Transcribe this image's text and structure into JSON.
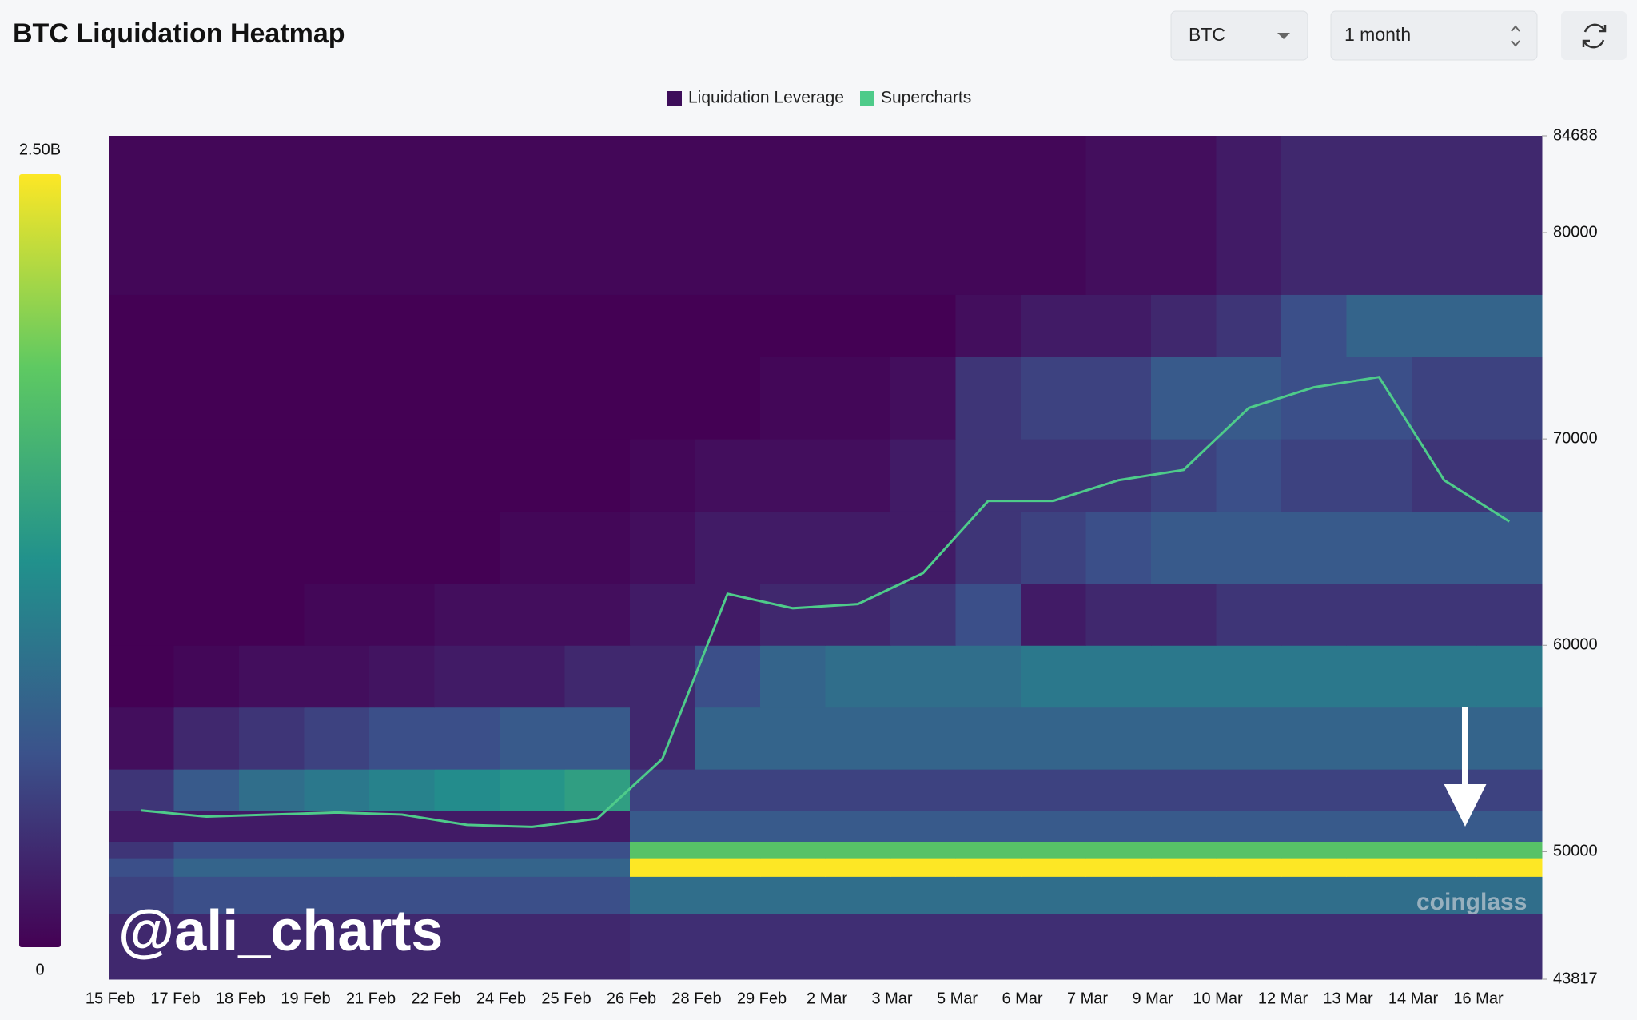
{
  "header": {
    "title": "BTC Liquidation Heatmap",
    "symbol": "BTC",
    "range": "1 month"
  },
  "chart_data": {
    "type": "heatmap",
    "categories": [
      "15 Feb",
      "17 Feb",
      "18 Feb",
      "19 Feb",
      "21 Feb",
      "22 Feb",
      "24 Feb",
      "25 Feb",
      "26 Feb",
      "28 Feb",
      "29 Feb",
      "2 Mar",
      "3 Mar",
      "5 Mar",
      "6 Mar",
      "7 Mar",
      "9 Mar",
      "10 Mar",
      "12 Mar",
      "13 Mar",
      "14 Mar",
      "16 Mar"
    ],
    "ylim": [
      43817,
      84688
    ],
    "yticks": [
      43817,
      50000,
      60000,
      70000,
      80000,
      84688
    ],
    "heatmap": {
      "name": "Liquidation Leverage",
      "color": "#3d0d5a",
      "clim": [
        0,
        2.5
      ],
      "cticks": [
        0,
        {
          "value": 2.5,
          "label": "2.50B"
        }
      ],
      "ybins": [
        43817,
        47000,
        48800,
        49700,
        50500,
        52000,
        54000,
        57000,
        60000,
        63000,
        66500,
        70000,
        74000,
        77000,
        84688
      ],
      "z": [
        [
          0.3,
          0.3,
          0.3,
          0.3,
          0.3,
          0.3,
          0.3,
          0.3,
          0.35,
          0.35,
          0.35,
          0.35,
          0.35,
          0.35,
          0.35,
          0.35,
          0.35,
          0.35,
          0.35,
          0.35,
          0.35,
          0.35
        ],
        [
          0.5,
          0.6,
          0.6,
          0.6,
          0.6,
          0.6,
          0.6,
          0.6,
          0.9,
          0.9,
          0.9,
          0.9,
          0.9,
          0.9,
          0.9,
          0.9,
          0.9,
          0.9,
          0.9,
          0.9,
          0.9,
          0.9
        ],
        [
          0.6,
          0.8,
          0.8,
          0.8,
          0.8,
          0.8,
          0.8,
          0.8,
          2.5,
          2.5,
          2.5,
          2.5,
          2.5,
          2.5,
          2.5,
          2.5,
          2.5,
          2.5,
          2.5,
          2.5,
          2.5,
          2.5
        ],
        [
          0.4,
          0.6,
          0.6,
          0.6,
          0.6,
          0.6,
          0.6,
          0.6,
          1.8,
          1.8,
          1.8,
          1.8,
          1.8,
          1.8,
          1.8,
          1.8,
          1.8,
          1.8,
          1.8,
          1.8,
          1.8,
          1.8
        ],
        [
          0.2,
          0.2,
          0.2,
          0.2,
          0.2,
          0.2,
          0.2,
          0.2,
          0.7,
          0.7,
          0.7,
          0.7,
          0.7,
          0.7,
          0.7,
          0.7,
          0.7,
          0.7,
          0.7,
          0.7,
          0.7,
          0.7
        ],
        [
          0.4,
          0.7,
          0.9,
          1.0,
          1.1,
          1.2,
          1.3,
          1.4,
          0.5,
          0.5,
          0.5,
          0.5,
          0.5,
          0.5,
          0.5,
          0.5,
          0.5,
          0.5,
          0.5,
          0.5,
          0.5,
          0.5
        ],
        [
          0.1,
          0.3,
          0.4,
          0.5,
          0.6,
          0.6,
          0.7,
          0.7,
          0.3,
          0.8,
          0.8,
          0.8,
          0.8,
          0.8,
          0.8,
          0.8,
          0.8,
          0.8,
          0.8,
          0.8,
          0.8,
          0.8
        ],
        [
          0,
          0.05,
          0.1,
          0.1,
          0.15,
          0.2,
          0.2,
          0.3,
          0.3,
          0.6,
          0.8,
          0.9,
          0.9,
          0.9,
          1.0,
          1.0,
          1.0,
          1.0,
          1.0,
          1.0,
          1.0,
          1.0
        ],
        [
          0,
          0,
          0,
          0.05,
          0.05,
          0.1,
          0.1,
          0.1,
          0.2,
          0.2,
          0.3,
          0.3,
          0.4,
          0.6,
          0.2,
          0.3,
          0.3,
          0.4,
          0.4,
          0.4,
          0.4,
          0.4
        ],
        [
          0,
          0,
          0,
          0,
          0,
          0,
          0.05,
          0.05,
          0.1,
          0.2,
          0.2,
          0.2,
          0.2,
          0.4,
          0.5,
          0.6,
          0.7,
          0.7,
          0.7,
          0.7,
          0.7,
          0.7
        ],
        [
          0,
          0,
          0,
          0,
          0,
          0,
          0,
          0,
          0.05,
          0.1,
          0.1,
          0.1,
          0.2,
          0.4,
          0.4,
          0.4,
          0.5,
          0.6,
          0.5,
          0.5,
          0.4,
          0.4
        ],
        [
          0,
          0,
          0,
          0,
          0,
          0,
          0,
          0,
          0,
          0,
          0.05,
          0.05,
          0.1,
          0.4,
          0.5,
          0.5,
          0.7,
          0.7,
          0.6,
          0.6,
          0.5,
          0.5
        ],
        [
          0,
          0,
          0,
          0,
          0,
          0,
          0,
          0,
          0,
          0,
          0,
          0,
          0,
          0.1,
          0.2,
          0.2,
          0.3,
          0.4,
          0.6,
          0.8,
          0.8,
          0.8
        ],
        [
          0.05,
          0.05,
          0.05,
          0.05,
          0.05,
          0.05,
          0.05,
          0.05,
          0.05,
          0.05,
          0.05,
          0.05,
          0.05,
          0.05,
          0.05,
          0.1,
          0.1,
          0.2,
          0.3,
          0.3,
          0.3,
          0.3
        ]
      ]
    },
    "series": [
      {
        "name": "Supercharts",
        "color": "#4ecb8a",
        "values": [
          52000,
          51700,
          51800,
          51900,
          51800,
          51300,
          51200,
          51600,
          54500,
          62500,
          61800,
          62000,
          63500,
          67000,
          67000,
          68000,
          68500,
          71500,
          72500,
          73000,
          68000,
          66000
        ]
      }
    ],
    "watermarks": [
      "@ali_charts",
      "coinglass"
    ]
  }
}
